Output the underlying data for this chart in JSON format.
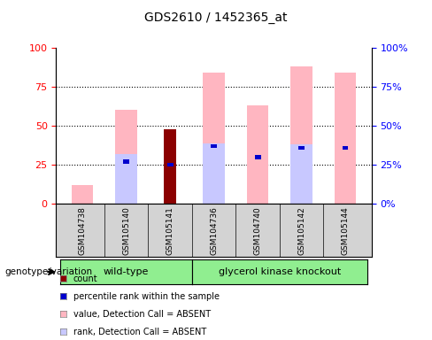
{
  "title": "GDS2610 / 1452365_at",
  "samples": [
    "GSM104738",
    "GSM105140",
    "GSM105141",
    "GSM104736",
    "GSM104740",
    "GSM105142",
    "GSM105144"
  ],
  "count_values": [
    0,
    0,
    48,
    0,
    0,
    0,
    0
  ],
  "count_color": "#8B0000",
  "percentile_rank_values": [
    0,
    27,
    25,
    37,
    30,
    36,
    36
  ],
  "percentile_rank_color": "#0000CD",
  "value_absent_values": [
    12,
    60,
    0,
    84,
    63,
    88,
    84
  ],
  "value_absent_color": "#FFB6C1",
  "rank_absent_values": [
    0,
    32,
    0,
    39,
    0,
    38,
    0
  ],
  "rank_absent_color": "#C8C8FF",
  "ylim": [
    0,
    100
  ],
  "yticks": [
    0,
    25,
    50,
    75,
    100
  ],
  "left_tick_color": "#FF0000",
  "right_tick_color": "#0000FF",
  "bar_width": 0.5,
  "legend_items": [
    {
      "label": "count",
      "color": "#8B0000"
    },
    {
      "label": "percentile rank within the sample",
      "color": "#0000CD"
    },
    {
      "label": "value, Detection Call = ABSENT",
      "color": "#FFB6C1"
    },
    {
      "label": "rank, Detection Call = ABSENT",
      "color": "#C8C8FF"
    }
  ],
  "genotype_label": "genotype/variation",
  "bg_color": "#D3D3D3",
  "group_color": "#90EE90",
  "wt_label": "wild-type",
  "gk_label": "glycerol kinase knockout"
}
